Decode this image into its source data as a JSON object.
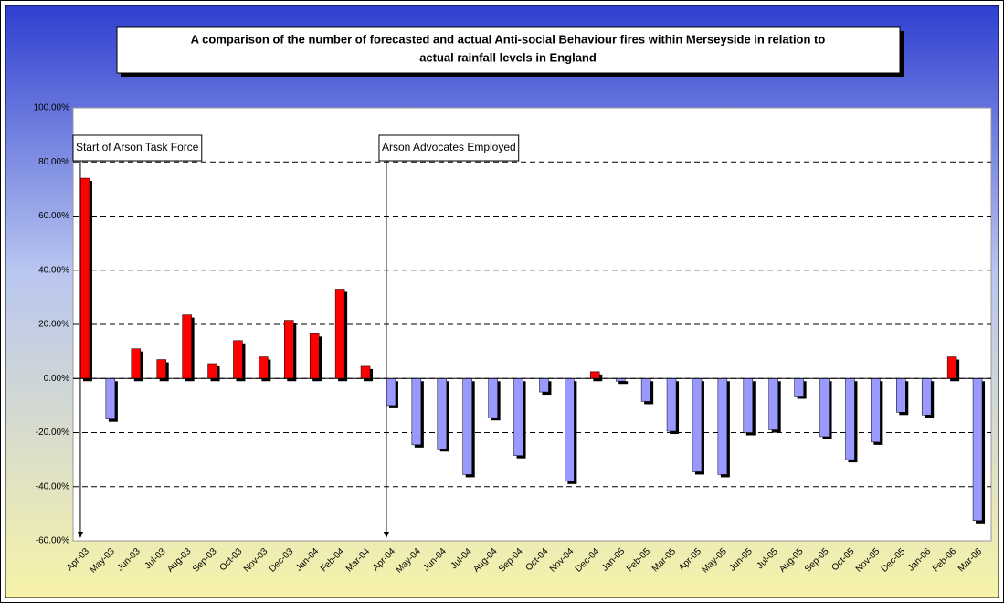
{
  "chart_data": {
    "type": "bar",
    "title": [
      "A comparison of the number of forecasted and actual Anti-social Behaviour fires within Merseyside in relation to",
      "actual rainfall levels in England"
    ],
    "categories": [
      "Apr-03",
      "May-03",
      "Jun-03",
      "Jul-03",
      "Aug-03",
      "Sep-03",
      "Oct-03",
      "Nov-03",
      "Dec-03",
      "Jan-04",
      "Feb-04",
      "Mar-04",
      "Apr-04",
      "May-04",
      "Jun-04",
      "Jul-04",
      "Aug-04",
      "Sep-04",
      "Oct-04",
      "Nov-04",
      "Dec-04",
      "Jan-05",
      "Feb-05",
      "Mar-05",
      "Apr-05",
      "May-05",
      "Jun-05",
      "Jul-05",
      "Aug-05",
      "Sep-05",
      "Oct-05",
      "Nov-05",
      "Dec-05",
      "Jan-06",
      "Feb-06",
      "Mar-06"
    ],
    "values": [
      74,
      -15,
      11,
      7,
      23.5,
      5.5,
      14,
      8,
      21.5,
      16.5,
      33,
      4.5,
      -10,
      -24.5,
      -26,
      -35.5,
      -14.5,
      -28.5,
      -5,
      -38,
      2.5,
      -1,
      -8.5,
      -19.5,
      -34.5,
      -35.5,
      -20,
      -19,
      -6.5,
      -21.5,
      -30,
      -23.5,
      -12.5,
      -13.5,
      8,
      -52.5
    ],
    "positive_color": "#ff0000",
    "negative_color": "#9999ff",
    "ylim": [
      -60,
      100
    ],
    "yticks": [
      {
        "value": -60,
        "label": "-60.00%"
      },
      {
        "value": -40,
        "label": "-40.00%"
      },
      {
        "value": -20,
        "label": "-20.00%"
      },
      {
        "value": 0,
        "label": "0.00%"
      },
      {
        "value": 20,
        "label": "20.00%"
      },
      {
        "value": 40,
        "label": "40.00%"
      },
      {
        "value": 60,
        "label": "60.00%"
      },
      {
        "value": 80,
        "label": "80.00%"
      },
      {
        "value": 100,
        "label": "100.00%"
      }
    ],
    "grid": true,
    "annotations": [
      {
        "text": "Start of Arson Task Force",
        "category": "Apr-03"
      },
      {
        "text": "Arson Advocates Employed",
        "category": "Apr-04"
      }
    ]
  }
}
